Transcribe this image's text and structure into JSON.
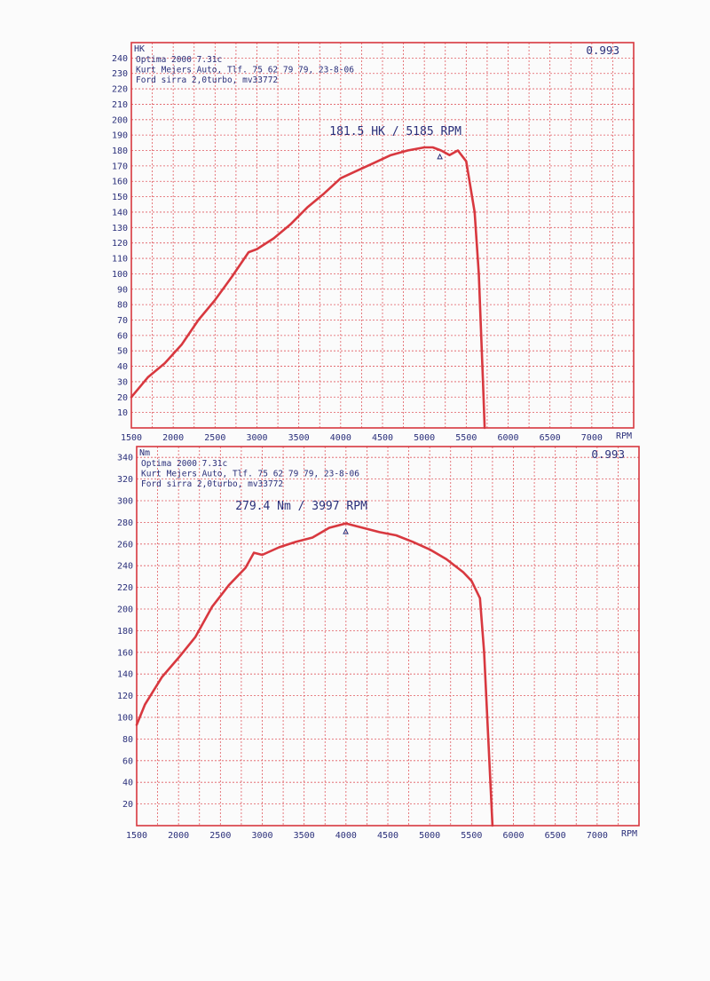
{
  "chart_data": [
    {
      "type": "line",
      "ylabel": "HK",
      "xlabel": "RPM",
      "corner_value": "0.993",
      "info_lines": [
        "Optima 2000 7.31c",
        "Kurt Mejers Auto, Tlf. 75 62 79 79, 23-8-06",
        "Ford sirra 2,0turbo, mv33772"
      ],
      "peak_label": "181.5 HK / 5185 RPM",
      "peak": {
        "x": 5185,
        "y": 181.5
      },
      "xlim": [
        1500,
        7500
      ],
      "ylim": [
        0,
        250
      ],
      "xticks": [
        1500,
        2000,
        2500,
        3000,
        3500,
        4000,
        4500,
        5000,
        5500,
        6000,
        6500,
        7000
      ],
      "yticks": [
        10,
        20,
        30,
        40,
        50,
        60,
        70,
        80,
        90,
        100,
        110,
        120,
        130,
        140,
        150,
        160,
        170,
        180,
        190,
        200,
        210,
        220,
        230,
        240
      ],
      "grid": true,
      "colors": {
        "curve": "#d8383f",
        "grid": "#e05a60",
        "frame": "#d8383f",
        "text": "#2a2f7a"
      },
      "series": [
        {
          "x": [
            1500,
            1700,
            1900,
            2100,
            2300,
            2500,
            2700,
            2900,
            3000,
            3200,
            3400,
            3600,
            3800,
            4000,
            4200,
            4400,
            4600,
            4800,
            5000,
            5100,
            5200,
            5300,
            5400,
            5500,
            5600,
            5650,
            5700,
            5720
          ],
          "y": [
            20,
            33,
            42,
            54,
            70,
            83,
            98,
            114,
            116,
            123,
            132,
            143,
            152,
            162,
            167,
            172,
            177,
            180,
            182,
            182,
            180,
            177,
            180,
            173,
            140,
            100,
            30,
            0
          ]
        }
      ]
    },
    {
      "type": "line",
      "ylabel": "Nm",
      "xlabel": "RPM",
      "corner_value": "0.993",
      "info_lines": [
        "Optima 2000 7.31c",
        "Kurt Mejers Auto, Tlf. 75 62 79 79, 23-8-06",
        "Ford sirra 2,0turbo, mv33772"
      ],
      "peak_label": "279.4 Nm / 3997 RPM",
      "peak": {
        "x": 3997,
        "y": 279.4
      },
      "xlim": [
        1500,
        7500
      ],
      "ylim": [
        0,
        350
      ],
      "xticks": [
        1500,
        2000,
        2500,
        3000,
        3500,
        4000,
        4500,
        5000,
        5500,
        6000,
        6500,
        7000
      ],
      "yticks": [
        20,
        40,
        60,
        80,
        100,
        120,
        140,
        160,
        180,
        200,
        220,
        240,
        260,
        280,
        300,
        320,
        340
      ],
      "grid": true,
      "colors": {
        "curve": "#d8383f",
        "grid": "#e05a60",
        "frame": "#d8383f",
        "text": "#2a2f7a"
      },
      "series": [
        {
          "x": [
            1500,
            1600,
            1800,
            2000,
            2200,
            2400,
            2600,
            2800,
            2900,
            3000,
            3200,
            3400,
            3600,
            3800,
            4000,
            4200,
            4400,
            4600,
            4800,
            5000,
            5200,
            5400,
            5500,
            5600,
            5650,
            5700,
            5750
          ],
          "y": [
            93,
            112,
            137,
            155,
            174,
            202,
            222,
            238,
            252,
            250,
            257,
            262,
            266,
            275,
            279,
            275,
            271,
            268,
            262,
            255,
            246,
            234,
            226,
            210,
            160,
            80,
            0
          ]
        }
      ]
    }
  ]
}
